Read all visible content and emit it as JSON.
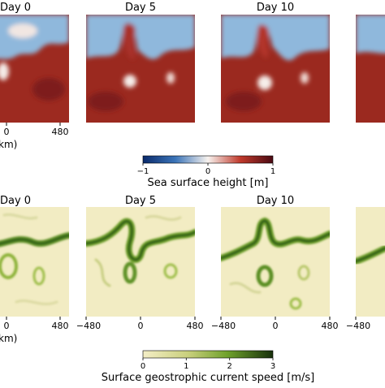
{
  "chart_data": [
    {
      "type": "heatmap",
      "variable": "Sea surface height",
      "colorbar": {
        "label": "Sea surface height [m]",
        "ticks": [
          "−1",
          "0",
          "1"
        ],
        "range": [
          -1,
          1
        ],
        "colormap": "RdBu_r"
      },
      "panels": [
        {
          "title": "Day 0",
          "xticks": [
            "0",
            "480"
          ],
          "xlabel": "km"
        },
        {
          "title": "Day 5",
          "xticks": []
        },
        {
          "title": "Day 10",
          "xticks": []
        },
        {
          "title": "",
          "xticks": []
        }
      ]
    },
    {
      "type": "heatmap",
      "variable": "Surface geostrophic current speed",
      "colorbar": {
        "label": "Surface geostrophic current speed [m/s]",
        "ticks": [
          "0",
          "1",
          "2",
          "3"
        ],
        "range": [
          0,
          3
        ],
        "colormap": "speed"
      },
      "panels": [
        {
          "title": "Day 0",
          "xticks": [
            "0",
            "480"
          ],
          "xlabel": "km"
        },
        {
          "title": "Day 5",
          "xticks": [
            "−480",
            "0",
            "480"
          ]
        },
        {
          "title": "Day 10",
          "xticks": [
            "−480",
            "0",
            "480"
          ]
        },
        {
          "title": "",
          "xticks": [
            "−480"
          ]
        }
      ]
    }
  ],
  "colors": {
    "ssh_high": "#8b1a1a",
    "ssh_mid": "#f7f2ee",
    "ssh_low": "#3b74b8",
    "speed_low": "#f4eec6",
    "speed_mid": "#7aa92c",
    "speed_high": "#1f3d10"
  }
}
